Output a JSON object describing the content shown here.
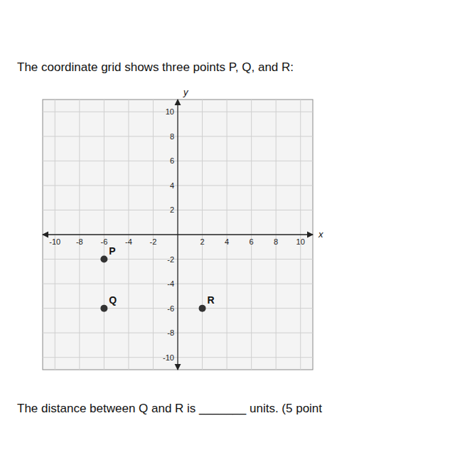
{
  "chart_data": {
    "type": "scatter",
    "title": "The coordinate grid shows three points P, Q, and R:",
    "subtitle": "The distance between Q and R is _______ units. (5 point",
    "x_label": "x",
    "y_label": "y",
    "x": [
      -6,
      -6,
      2
    ],
    "values": [
      -2,
      -6,
      -6
    ],
    "point_labels": [
      "P",
      "Q",
      "R"
    ],
    "color": "#333333",
    "xlim": [
      -11,
      11
    ],
    "ylim": [
      -11,
      11
    ],
    "xticks": [
      -10,
      -8,
      -6,
      -4,
      -2,
      2,
      4,
      6,
      8,
      10
    ],
    "yticks": [
      -10,
      -8,
      -6,
      -4,
      -2,
      2,
      4,
      6,
      8,
      10
    ],
    "grid": true
  }
}
